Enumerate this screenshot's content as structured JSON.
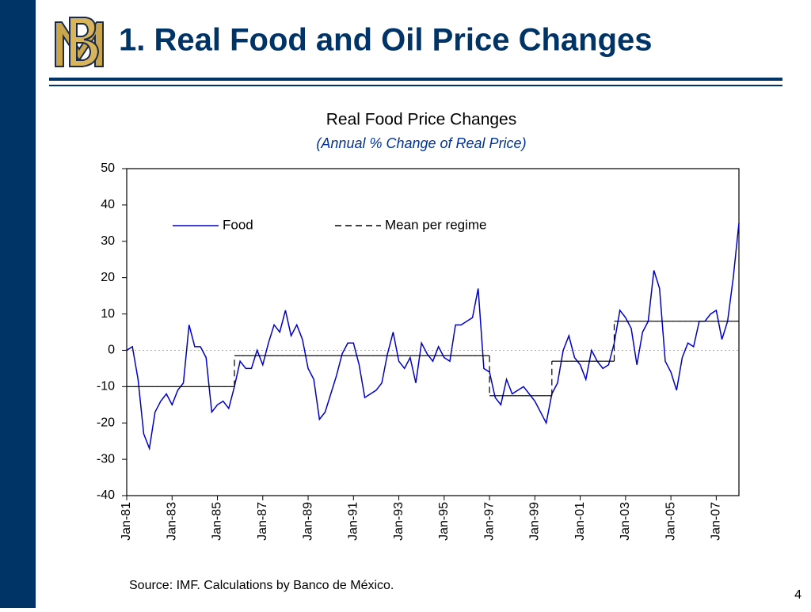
{
  "title": "1. Real Food and Oil Price Changes",
  "source": "Source: IMF. Calculations by Banco de México.",
  "page_number": "4",
  "chart_data": {
    "type": "line",
    "title": "Real Food Price Changes",
    "subtitle": "(Annual % Change of Real Price)",
    "categories": [
      "Jan-81",
      null,
      null,
      null,
      null,
      null,
      null,
      null,
      "Jan-83",
      null,
      null,
      null,
      null,
      null,
      null,
      null,
      "Jan-85",
      null,
      null,
      null,
      null,
      null,
      null,
      null,
      "Jan-87",
      null,
      null,
      null,
      null,
      null,
      null,
      null,
      "Jan-89",
      null,
      null,
      null,
      null,
      null,
      null,
      null,
      "Jan-91",
      null,
      null,
      null,
      null,
      null,
      null,
      null,
      "Jan-93",
      null,
      null,
      null,
      null,
      null,
      null,
      null,
      "Jan-95",
      null,
      null,
      null,
      null,
      null,
      null,
      null,
      "Jan-97",
      null,
      null,
      null,
      null,
      null,
      null,
      null,
      "Jan-99",
      null,
      null,
      null,
      null,
      null,
      null,
      null,
      "Jan-01",
      null,
      null,
      null,
      null,
      null,
      null,
      null,
      "Jan-03",
      null,
      null,
      null,
      null,
      null,
      null,
      null,
      "Jan-05",
      null,
      null,
      null,
      null,
      null,
      null,
      null,
      "Jan-07",
      null,
      null,
      null,
      null
    ],
    "series": [
      {
        "name": "Food",
        "color": "#0000cc",
        "values": [
          0,
          1,
          -8,
          -23,
          -27,
          -17,
          -14,
          -12,
          -15,
          -11,
          -9,
          7,
          1,
          1,
          -2,
          -17,
          -15,
          -14,
          -16,
          -10,
          -3,
          -5,
          -5,
          0,
          -4,
          2,
          7,
          5,
          11,
          4,
          7,
          3,
          -5,
          -8,
          -19,
          -17,
          -12,
          -7,
          -1,
          2,
          2,
          -4,
          -13,
          -12,
          -11,
          -9,
          -1,
          5,
          -3,
          -5,
          -2,
          -9,
          2,
          -1,
          -3,
          1,
          -2,
          -3,
          7,
          7,
          8,
          9,
          17,
          -5,
          -6,
          -13,
          -15,
          -8,
          -12,
          -11,
          -10,
          -12,
          -14,
          -17,
          -20,
          -12,
          -9,
          0,
          4,
          -2,
          -4,
          -8,
          0,
          -3,
          -5,
          -4,
          2,
          11,
          9,
          6,
          -4,
          5,
          8,
          22,
          17,
          -3,
          -6,
          -11,
          -2,
          2,
          1,
          8,
          8,
          10,
          11,
          3,
          8,
          20,
          35
        ]
      },
      {
        "name": "Mean per regime",
        "color": "#000000",
        "dash": true,
        "values": [
          -10,
          -10,
          -10,
          -10,
          -10,
          -10,
          -10,
          -10,
          -10,
          -10,
          -10,
          -10,
          -10,
          -10,
          -10,
          -10,
          -10,
          -10,
          -10,
          -1.5,
          -1.5,
          -1.5,
          -1.5,
          -1.5,
          -1.5,
          -1.5,
          -1.5,
          -1.5,
          -1.5,
          -1.5,
          -1.5,
          -1.5,
          -1.5,
          -1.5,
          -1.5,
          -1.5,
          -1.5,
          -1.5,
          -1.5,
          -1.5,
          -1.5,
          -1.5,
          -1.5,
          -1.5,
          -1.5,
          -1.5,
          -1.5,
          -1.5,
          -1.5,
          -1.5,
          -1.5,
          -1.5,
          -1.5,
          -1.5,
          -1.5,
          -1.5,
          -1.5,
          -1.5,
          -1.5,
          -1.5,
          -1.5,
          -1.5,
          -1.5,
          -1.5,
          -12.5,
          -12.5,
          -12.5,
          -12.5,
          -12.5,
          -12.5,
          -12.5,
          -12.5,
          -12.5,
          -12.5,
          -12.5,
          -3,
          -3,
          -3,
          -3,
          -3,
          -3,
          -3,
          -3,
          -3,
          -3,
          -3,
          8,
          8,
          8,
          8,
          8,
          8,
          8,
          8,
          8,
          8,
          8,
          8,
          8,
          8,
          8,
          8,
          8,
          8,
          8,
          8,
          8,
          8,
          8
        ]
      }
    ],
    "ylim": [
      -40,
      50
    ],
    "yticks": [
      -40,
      -30,
      -20,
      -10,
      0,
      10,
      20,
      30,
      40,
      50
    ],
    "legend": "top"
  }
}
